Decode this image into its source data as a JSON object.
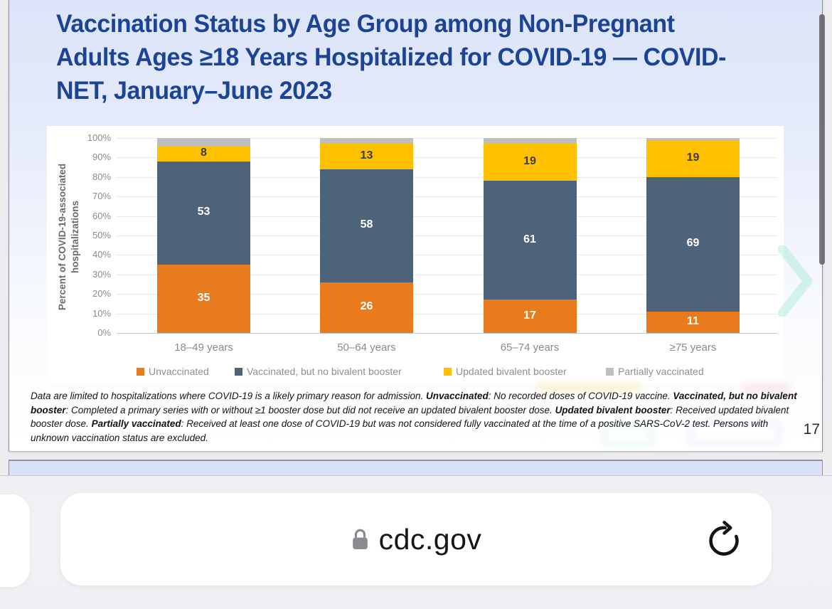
{
  "slide": {
    "title_lines": [
      "Vaccination Status by Age Group among Non-Pregnant",
      "Adults Ages ≥18 Years Hospitalized for COVID-19 — COVID-",
      "NET, January–June 2023"
    ],
    "page_number": "17"
  },
  "chart_data": {
    "type": "bar",
    "stacked": true,
    "title": "",
    "xlabel": "",
    "ylabel": "Percent of COVID-19-associated hospitalizations",
    "ylabel_lines": [
      "Percent of COVID-19-associated",
      "hospitalizations"
    ],
    "ylim": [
      0,
      100
    ],
    "ytick_step": 10,
    "ytick_suffix": "%",
    "grid": true,
    "legend_position": "bottom",
    "categories": [
      "18–49 years",
      "50–64 years",
      "65–74 years",
      "≥75 years"
    ],
    "series": [
      {
        "name": "Unvaccinated",
        "color": "#E87B1E",
        "values": [
          35,
          26,
          17,
          11
        ],
        "show_labels": true,
        "label_color": "#ffffff"
      },
      {
        "name": "Vaccinated, but no bivalent booster",
        "color": "#4C6379",
        "values": [
          53,
          58,
          61,
          69
        ],
        "show_labels": true,
        "label_color": "#ffffff"
      },
      {
        "name": "Updated bivalent booster",
        "color": "#FFC000",
        "values": [
          8,
          13,
          19,
          19
        ],
        "show_labels": true,
        "label_color": "#3d3d3d"
      },
      {
        "name": "Partially vaccinated",
        "color": "#BFBFBF",
        "values": [
          4,
          3,
          3,
          1
        ],
        "show_labels": false,
        "label_color": "#3d3d3d"
      }
    ]
  },
  "footnote": {
    "runs": [
      {
        "t": "Data are limited to hospitalizations where COVID-19 is a likely primary reason for admission. ",
        "b": false
      },
      {
        "t": "Unvaccinated",
        "b": true
      },
      {
        "t": ": No recorded doses of COVID-19 vaccine. ",
        "b": false
      },
      {
        "t": "Vaccinated, but no bivalent booster",
        "b": true
      },
      {
        "t": ": Completed a primary series with or without ≥1 booster dose but did not receive an updated bivalent booster dose. ",
        "b": false
      },
      {
        "t": "Updated bivalent booster",
        "b": true
      },
      {
        "t": ": Received updated bivalent booster dose. ",
        "b": false
      },
      {
        "t": "Partially vaccinated",
        "b": true
      },
      {
        "t": ": Received at least one dose of COVID-19 but was not considered fully vaccinated at the time of a positive SARS-CoV-2 test. Persons with unknown vaccination status are excluded.",
        "b": false
      }
    ]
  },
  "browser": {
    "url": "cdc.gov",
    "lock_icon": "lock-icon",
    "reload_icon": "reload-icon"
  },
  "colors": {
    "title_blue": "#1b4497",
    "unvaccinated_orange": "#E87B1E",
    "no_bivalent_slate": "#4C6379",
    "bivalent_yellow": "#FFC000",
    "partial_gray": "#BFBFBF"
  }
}
